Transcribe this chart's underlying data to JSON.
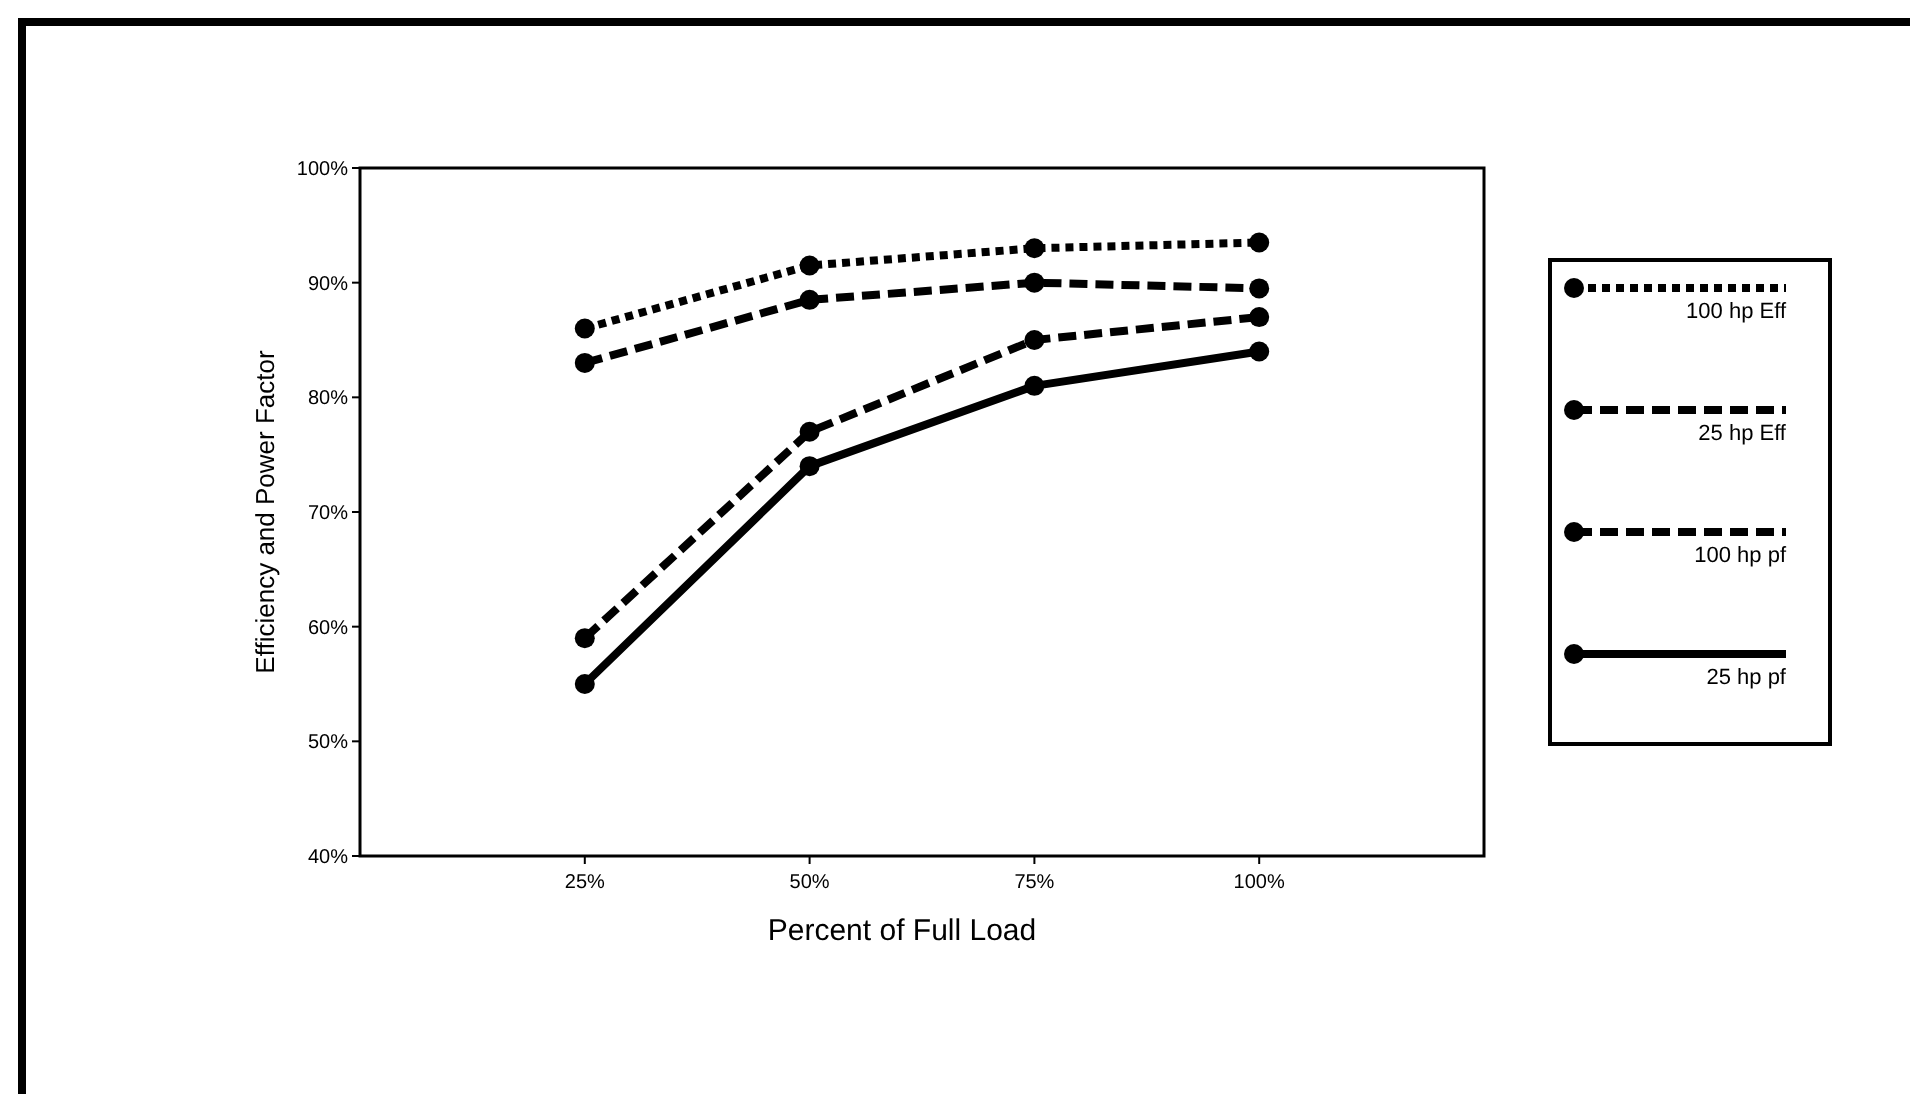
{
  "chart_data": {
    "type": "line",
    "xlabel": "Percent of Full Load",
    "ylabel": "Efficiency and Power Factor",
    "x": [
      25,
      50,
      75,
      100
    ],
    "xlim": [
      0,
      125
    ],
    "xticks": [
      {
        "value": 25,
        "label": "25%"
      },
      {
        "value": 50,
        "label": "50%"
      },
      {
        "value": 75,
        "label": "75%"
      },
      {
        "value": 100,
        "label": "100%"
      }
    ],
    "ylim": [
      40,
      100
    ],
    "yticks": [
      {
        "value": 40,
        "label": "40%"
      },
      {
        "value": 50,
        "label": "50%"
      },
      {
        "value": 60,
        "label": "60%"
      },
      {
        "value": 70,
        "label": "70%"
      },
      {
        "value": 80,
        "label": "80%"
      },
      {
        "value": 90,
        "label": "90%"
      },
      {
        "value": 100,
        "label": "100%"
      }
    ],
    "legend": "right",
    "grid": false,
    "marker": "circle",
    "series": [
      {
        "name": "100 hp Eff",
        "color": "#000000",
        "line_style": "dotted",
        "values": [
          86,
          91.5,
          93,
          93.5
        ]
      },
      {
        "name": "25 hp Eff",
        "color": "#000000",
        "line_style": "dashed",
        "values": [
          83,
          88.5,
          90,
          89.5
        ]
      },
      {
        "name": "100 hp pf",
        "color": "#000000",
        "line_style": "dashed",
        "values": [
          59,
          77,
          85,
          87
        ]
      },
      {
        "name": "25 hp pf",
        "color": "#000000",
        "line_style": "solid",
        "values": [
          55,
          74,
          81,
          84
        ]
      }
    ]
  }
}
